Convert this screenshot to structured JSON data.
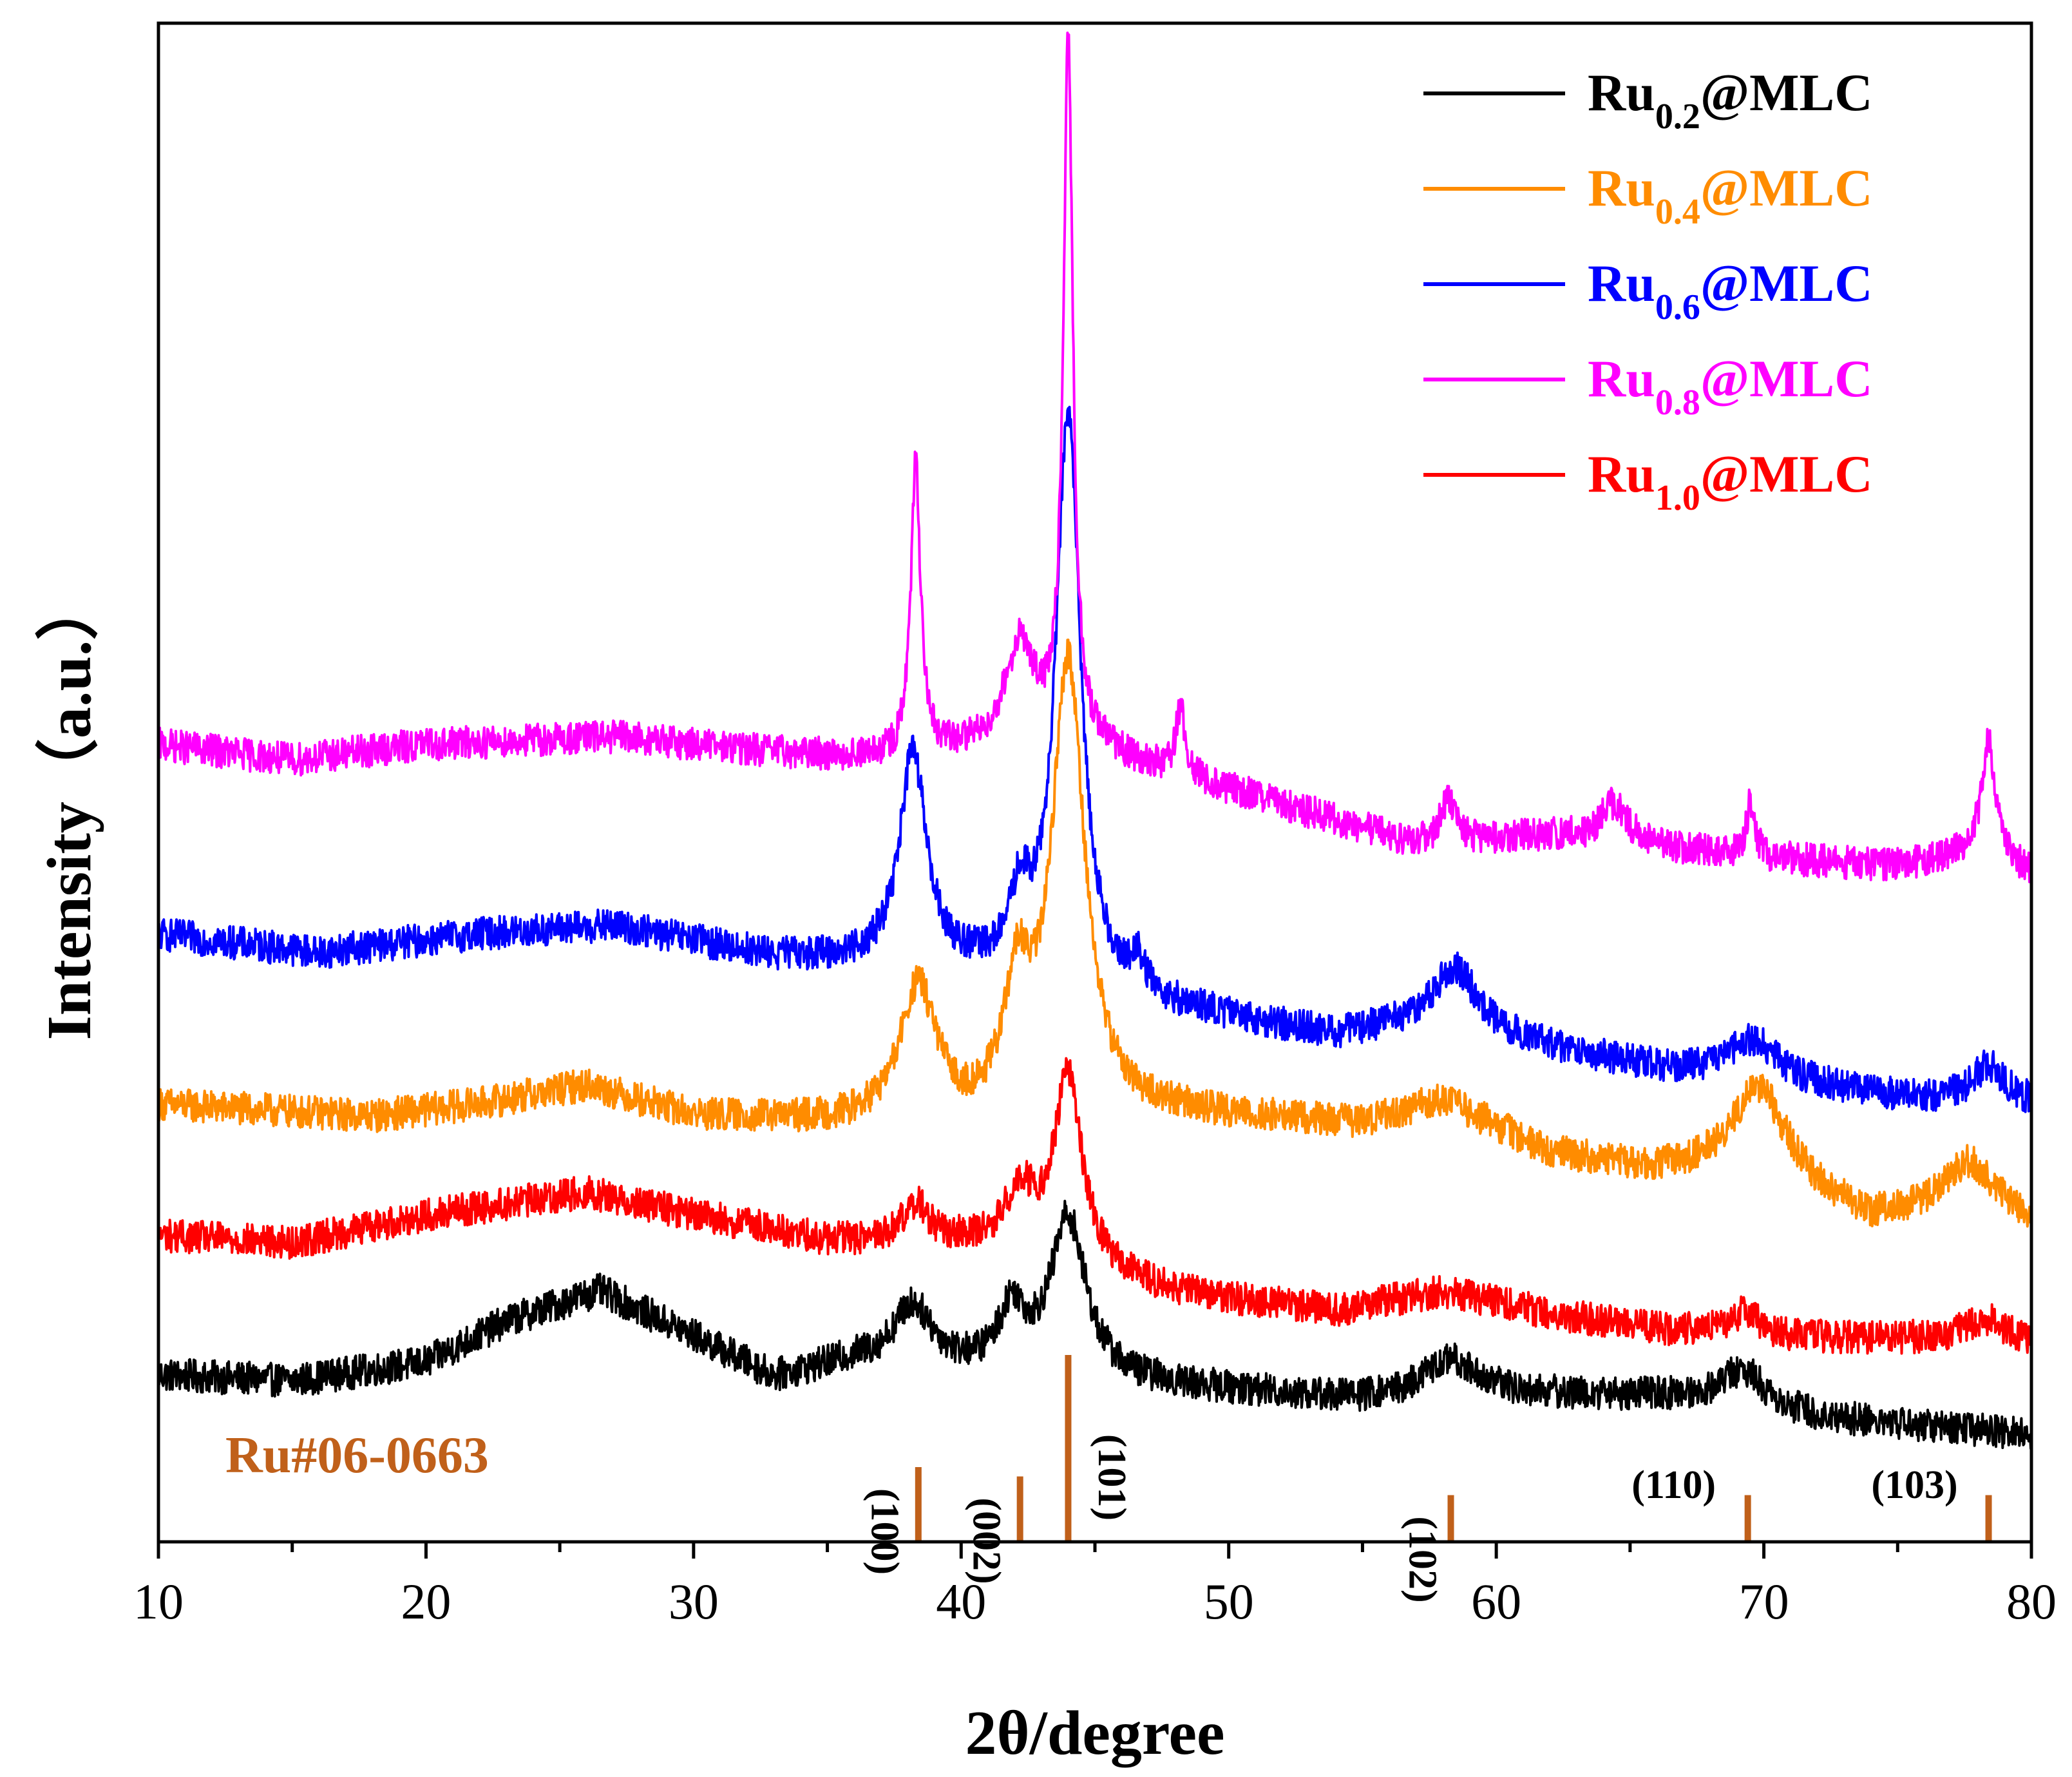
{
  "chart_data": {
    "type": "line",
    "title": "",
    "xlabel": "2θ/degree",
    "ylabel": "Intensity（a.u.）",
    "xlim": [
      10,
      80
    ],
    "ylim": [
      0,
      100
    ],
    "xticks": [
      "10",
      "20",
      "30",
      "40",
      "50",
      "60",
      "70",
      "80"
    ],
    "yticks": [],
    "legend_position": "top-right",
    "series": [
      {
        "name_main": "Ru",
        "name_sub": "0.2",
        "name_tail": "@MLC",
        "color": "#000000",
        "baseline": [
          [
            10,
            11.0
          ],
          [
            15,
            10.6
          ],
          [
            20,
            11.8
          ],
          [
            23,
            14.5
          ],
          [
            26.5,
            16.5
          ],
          [
            30,
            13.5
          ],
          [
            33,
            10.8
          ],
          [
            36,
            11.8
          ],
          [
            40,
            11.2
          ],
          [
            48,
            10.2
          ],
          [
            55,
            9.3
          ],
          [
            62,
            9.6
          ],
          [
            66,
            9.5
          ],
          [
            72,
            8.1
          ],
          [
            76,
            7.6
          ],
          [
            80,
            7.0
          ]
        ],
        "peaks": [
          {
            "x": 38.2,
            "h": 4.0,
            "w": 0.9
          },
          {
            "x": 41.9,
            "h": 4.0,
            "w": 0.6
          },
          {
            "x": 44.0,
            "h": 10.5,
            "w": 0.8
          },
          {
            "x": 58.3,
            "h": 2.5,
            "w": 1.3
          },
          {
            "x": 69.2,
            "h": 2.5,
            "w": 1.1
          }
        ]
      },
      {
        "name_main": "Ru",
        "name_sub": "0.4",
        "name_tail": "@MLC",
        "color": "#ff8c00",
        "baseline": [
          [
            10,
            28.8
          ],
          [
            18,
            28.0
          ],
          [
            22,
            28.8
          ],
          [
            26,
            30.0
          ],
          [
            30,
            28.0
          ],
          [
            35,
            27.5
          ],
          [
            40,
            27.0
          ],
          [
            48,
            28.0
          ],
          [
            55,
            27.5
          ],
          [
            58,
            29.0
          ],
          [
            62,
            25.5
          ],
          [
            66,
            24.3
          ],
          [
            70,
            23.8
          ],
          [
            74,
            21.0
          ],
          [
            77,
            21.5
          ],
          [
            80,
            20.8
          ]
        ],
        "peaks": [
          {
            "x": 38.4,
            "h": 9.0,
            "w": 0.85
          },
          {
            "x": 42.1,
            "h": 8.0,
            "w": 0.6
          },
          {
            "x": 44.0,
            "h": 30.0,
            "w": 0.75
          },
          {
            "x": 69.8,
            "h": 6.0,
            "w": 1.3
          },
          {
            "x": 77.7,
            "h": 3.5,
            "w": 1.2
          }
        ]
      },
      {
        "name_main": "Ru",
        "name_sub": "0.6",
        "name_tail": "@MLC",
        "color": "#0000ff",
        "baseline": [
          [
            10,
            40.0
          ],
          [
            16,
            38.8
          ],
          [
            22,
            40.0
          ],
          [
            27,
            40.5
          ],
          [
            33,
            38.5
          ],
          [
            37,
            38.0
          ],
          [
            40,
            37.5
          ],
          [
            48,
            35.0
          ],
          [
            54,
            33.3
          ],
          [
            58,
            34.5
          ],
          [
            62,
            32.5
          ],
          [
            66,
            31.2
          ],
          [
            70,
            30.5
          ],
          [
            76,
            29.0
          ],
          [
            80,
            28.7
          ]
        ],
        "peaks": [
          {
            "x": 38.2,
            "h": 14.0,
            "w": 0.6
          },
          {
            "x": 42.2,
            "h": 4.5,
            "w": 0.45
          },
          {
            "x": 44.0,
            "h": 38.0,
            "w": 0.55
          },
          {
            "x": 46.6,
            "h": 2.0,
            "w": 0.3
          },
          {
            "x": 58.5,
            "h": 3.5,
            "w": 0.9
          },
          {
            "x": 69.6,
            "h": 2.5,
            "w": 1.0
          },
          {
            "x": 78.4,
            "h": 2.5,
            "w": 0.8
          }
        ]
      },
      {
        "name_main": "Ru",
        "name_sub": "0.8",
        "name_tail": "@MLC",
        "color": "#ff00ff",
        "baseline": [
          [
            10,
            52.5
          ],
          [
            15,
            51.5
          ],
          [
            20,
            52.5
          ],
          [
            27,
            53.0
          ],
          [
            33,
            52.0
          ],
          [
            37,
            51.5
          ],
          [
            40,
            52.0
          ],
          [
            45,
            52.0
          ],
          [
            50,
            49.5
          ],
          [
            57,
            46.0
          ],
          [
            62,
            46.5
          ],
          [
            66,
            45.8
          ],
          [
            70,
            45.0
          ],
          [
            75,
            44.5
          ],
          [
            78,
            45.5
          ],
          [
            80,
            44.0
          ]
        ],
        "peaks": [
          {
            "x": 38.3,
            "h": 19.0,
            "w": 0.22
          },
          {
            "x": 42.2,
            "h": 7.0,
            "w": 0.7
          },
          {
            "x": 44.0,
            "h": 46.0,
            "w": 0.22
          },
          {
            "x": 48.2,
            "h": 4.5,
            "w": 0.2
          },
          {
            "x": 58.2,
            "h": 3.0,
            "w": 0.3
          },
          {
            "x": 64.4,
            "h": 2.5,
            "w": 0.6
          },
          {
            "x": 69.5,
            "h": 3.5,
            "w": 0.2
          },
          {
            "x": 78.4,
            "h": 7.5,
            "w": 0.3
          }
        ]
      },
      {
        "name_main": "Ru",
        "name_sub": "1.0",
        "name_tail": "@MLC",
        "color": "#ff0000",
        "baseline": [
          [
            10,
            20.2
          ],
          [
            15,
            19.7
          ],
          [
            20,
            21.5
          ],
          [
            26,
            23.0
          ],
          [
            30,
            21.5
          ],
          [
            35,
            19.8
          ],
          [
            40,
            19.5
          ],
          [
            48,
            16.3
          ],
          [
            54,
            15.2
          ],
          [
            58,
            16.5
          ],
          [
            62,
            15.0
          ],
          [
            66,
            14.0
          ],
          [
            70,
            13.5
          ],
          [
            76,
            13.3
          ],
          [
            80,
            13.0
          ]
        ],
        "peaks": [
          {
            "x": 38.3,
            "h": 2.5,
            "w": 0.6
          },
          {
            "x": 42.2,
            "h": 4.0,
            "w": 0.7
          },
          {
            "x": 44.0,
            "h": 12.5,
            "w": 0.65
          },
          {
            "x": 69.3,
            "h": 1.5,
            "w": 0.7
          },
          {
            "x": 78.3,
            "h": 1.5,
            "w": 1.0
          }
        ]
      }
    ],
    "reference": {
      "name": "Ru#06-0663",
      "color": "#c0601a",
      "peaks": [
        {
          "x": 38.4,
          "intensity": 40,
          "label": "(100)",
          "label_orientation": "vertical"
        },
        {
          "x": 42.2,
          "intensity": 35,
          "label": "(002)",
          "label_orientation": "vertical"
        },
        {
          "x": 44.0,
          "intensity": 100,
          "label": "(101)",
          "label_orientation": "vertical"
        },
        {
          "x": 58.3,
          "intensity": 25,
          "label": "(102)",
          "label_orientation": "vertical"
        },
        {
          "x": 69.4,
          "intensity": 25,
          "label": "(110)",
          "label_orientation": "horizontal"
        },
        {
          "x": 78.4,
          "intensity": 25,
          "label": "(103)",
          "label_orientation": "horizontal"
        }
      ]
    }
  }
}
